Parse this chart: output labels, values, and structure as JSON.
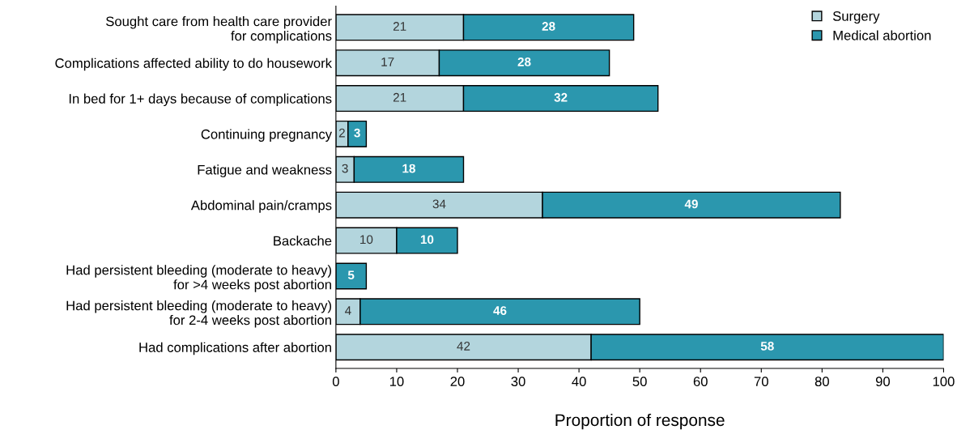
{
  "chart_data": {
    "type": "bar",
    "orientation": "horizontal",
    "stacked": true,
    "xlabel": "Proportion of response",
    "categories": [
      "Sought care from health care provider\nfor complications",
      "Complications affected ability to do housework",
      "In bed for 1+ days because of complications",
      "Continuing pregnancy",
      "Fatigue and weakness",
      "Abdominal pain/cramps",
      "Backache",
      "Had persistent bleeding (moderate to heavy)\nfor >4 weeks post abortion",
      "Had persistent bleeding (moderate to heavy)\nfor 2-4 weeks post abortion",
      "Had complications after abortion"
    ],
    "series": [
      {
        "name": "Surgery",
        "color": "#b3d5dd",
        "values": [
          21,
          17,
          21,
          2,
          3,
          34,
          10,
          null,
          4,
          42
        ]
      },
      {
        "name": "Medical abortion",
        "color": "#2b97ae",
        "values": [
          28,
          28,
          32,
          3,
          18,
          49,
          10,
          5,
          46,
          58
        ]
      }
    ],
    "xlim": [
      0,
      100
    ],
    "xticks": [
      0,
      10,
      20,
      30,
      40,
      50,
      60,
      70,
      80,
      90,
      100
    ],
    "data_labels": true,
    "legend": "top right",
    "grid": false
  }
}
